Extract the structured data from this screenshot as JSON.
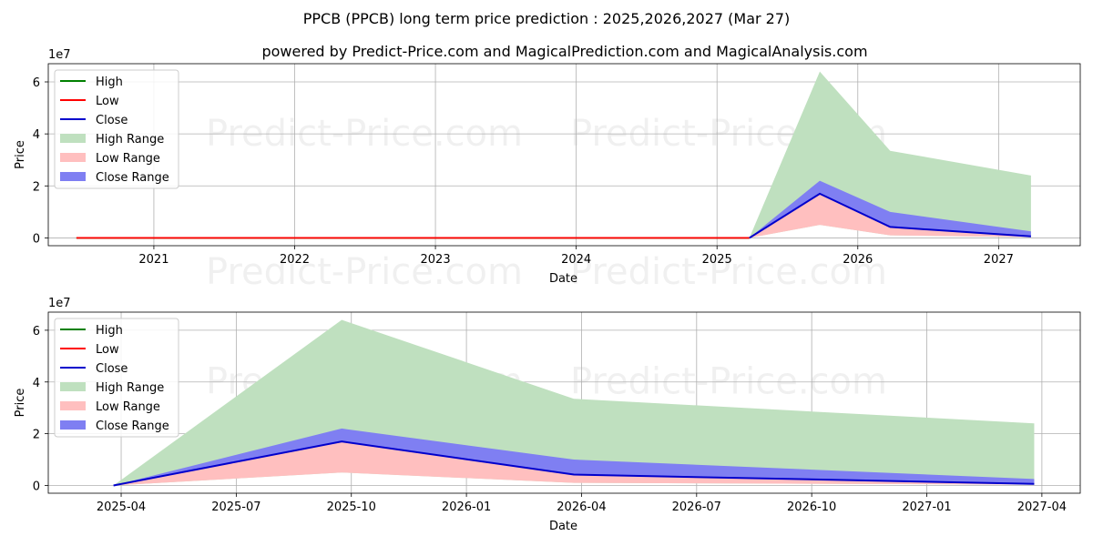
{
  "title": "PPCB (PPCB) long term price prediction : 2025,2026,2027 (Mar 27)",
  "subtitle": "powered by Predict-Price.com and MagicalPrediction.com and MagicalAnalysis.com",
  "watermark": "Predict-Price.com",
  "colors": {
    "high": "#008000",
    "low": "#ff0000",
    "close": "#0000cc",
    "high_range": "#bfe0bf",
    "low_range": "#ffbfbf",
    "close_range": "#7f7ff2"
  },
  "legend": [
    "High",
    "Low",
    "Close",
    "High Range",
    "Low Range",
    "Close Range"
  ],
  "chart_data": [
    {
      "type": "area",
      "name": "top",
      "xlabel": "Date",
      "ylabel": "Price",
      "exponent_label": "1e7",
      "xlim": [
        2020.25,
        2027.58
      ],
      "ylim": [
        -3.0,
        67.0
      ],
      "y_ticks": [
        0,
        2,
        4,
        6
      ],
      "y_tick_labels": [
        "0",
        "2",
        "4",
        "6"
      ],
      "x_ticks": [
        2021,
        2022,
        2023,
        2024,
        2025,
        2026,
        2027
      ],
      "x_tick_labels": [
        "2021",
        "2022",
        "2023",
        "2024",
        "2025",
        "2026",
        "2027"
      ],
      "history_x": [
        2020.45,
        2025.23
      ],
      "history_y": [
        0,
        0
      ],
      "x": [
        2025.23,
        2025.73,
        2026.23,
        2027.23
      ],
      "high_range": [
        [
          0,
          0
        ],
        [
          5,
          64
        ],
        [
          1,
          33.5
        ],
        [
          0.3,
          24
        ]
      ],
      "low_range": [
        [
          0,
          0
        ],
        [
          5,
          17
        ],
        [
          1,
          4.2
        ],
        [
          0.3,
          0.6
        ]
      ],
      "close_range": [
        [
          0,
          0
        ],
        [
          17,
          22
        ],
        [
          4.2,
          10
        ],
        [
          0.6,
          2.5
        ]
      ],
      "close": [
        0,
        17,
        4.2,
        0.6
      ],
      "units_note": "values in units of 1e6 (axis shows 1e7 scale: 6 = 6e7)"
    },
    {
      "type": "area",
      "name": "bottom",
      "xlabel": "Date",
      "ylabel": "Price",
      "exponent_label": "1e7",
      "xlim": [
        -1.9,
        25.0
      ],
      "ylim": [
        -3.0,
        67.0
      ],
      "y_ticks": [
        0,
        2,
        4,
        6
      ],
      "y_tick_labels": [
        "0",
        "2",
        "4",
        "6"
      ],
      "x_ticks": [
        0,
        3,
        6,
        9,
        12,
        15,
        18,
        21,
        24
      ],
      "x_tick_labels": [
        "2025-04",
        "2025-07",
        "2025-10",
        "2026-01",
        "2026-04",
        "2026-07",
        "2026-10",
        "2027-01",
        "2027-04"
      ],
      "x": [
        -0.2,
        5.75,
        11.8,
        23.8
      ],
      "high_range": [
        [
          0,
          0
        ],
        [
          5,
          64
        ],
        [
          1,
          33.5
        ],
        [
          0.3,
          24
        ]
      ],
      "low_range": [
        [
          0,
          0
        ],
        [
          5,
          17
        ],
        [
          1,
          4.2
        ],
        [
          0.3,
          0.6
        ]
      ],
      "close_range": [
        [
          0,
          0
        ],
        [
          17,
          22
        ],
        [
          4.2,
          10
        ],
        [
          0.6,
          2.5
        ]
      ],
      "close": [
        0,
        17,
        4.2,
        0.6
      ],
      "units_note": "x in months since 2025-04; y in units of 1e6"
    }
  ]
}
